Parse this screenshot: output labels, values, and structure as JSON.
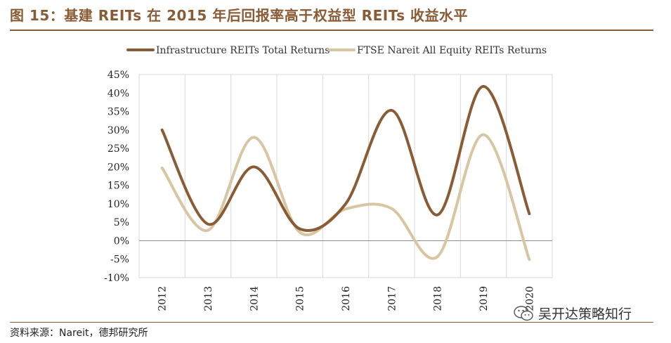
{
  "figure": {
    "title": "图 15：基建 REITs 在 2015 年后回报率高于权益型 REITs 收益水平",
    "source": "资料来源：Nareit，德邦研究所",
    "watermark": "吴开达策略知行"
  },
  "chart_data": {
    "type": "line",
    "title": "",
    "xlabel": "",
    "ylabel": "",
    "categories": [
      "2012",
      "2013",
      "2014",
      "2015",
      "2016",
      "2017",
      "2018",
      "2019",
      "2020"
    ],
    "ylim": [
      -0.1,
      0.45
    ],
    "yticks": [
      -0.1,
      -0.05,
      0,
      0.05,
      0.1,
      0.15,
      0.2,
      0.25,
      0.3,
      0.35,
      0.4,
      0.45
    ],
    "ytick_labels": [
      "-10%",
      "-5%",
      "0%",
      "5%",
      "10%",
      "15%",
      "20%",
      "25%",
      "30%",
      "35%",
      "40%",
      "45%"
    ],
    "grid": "vertical",
    "legend": "top",
    "smooth": true,
    "series": [
      {
        "name": "Infrastructure REITs Total  Returns",
        "color": "#8a5c36",
        "values": [
          0.3,
          0.045,
          0.2,
          0.032,
          0.1,
          0.353,
          0.07,
          0.418,
          0.073
        ]
      },
      {
        "name": "FTSE Nareit All Equity REITs Returns",
        "color": "#d8c6a3",
        "values": [
          0.197,
          0.028,
          0.28,
          0.023,
          0.086,
          0.087,
          -0.043,
          0.287,
          -0.051
        ]
      }
    ]
  }
}
